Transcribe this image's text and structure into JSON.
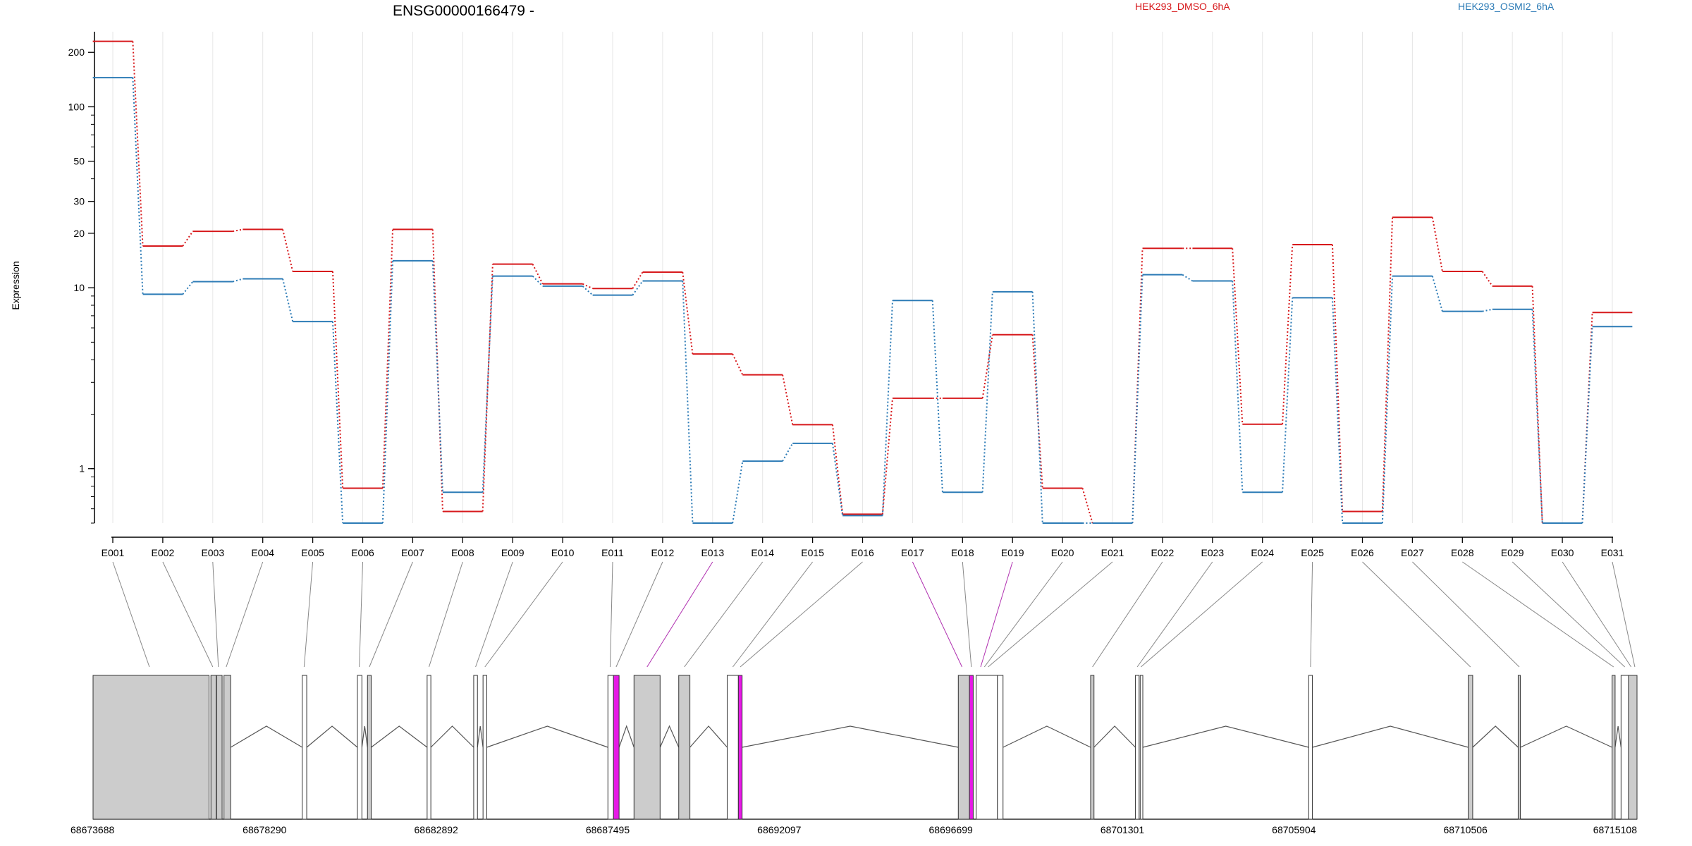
{
  "chart_data": {
    "type": "line",
    "title": "ENSG00000166479 -",
    "ylabel": "Expression",
    "xlabel": "",
    "yscale": "log",
    "ylim": [
      0.5,
      260
    ],
    "yticks": [
      1,
      10,
      20,
      30,
      50,
      100,
      200
    ],
    "grid": "vertical, light gray",
    "legend_placement": "top-right",
    "categories": [
      "E001",
      "E002",
      "E003",
      "E004",
      "E005",
      "E006",
      "E007",
      "E008",
      "E009",
      "E010",
      "E011",
      "E012",
      "E013",
      "E014",
      "E015",
      "E016",
      "E017",
      "E018",
      "E019",
      "E020",
      "E021",
      "E022",
      "E023",
      "E024",
      "E025",
      "E026",
      "E027",
      "E028",
      "E029",
      "E030",
      "E031"
    ],
    "series": [
      {
        "name": "HEK293_DMSO_6hA",
        "color": "#d7191c",
        "values": [
          230,
          17,
          20.5,
          21,
          12.3,
          0.78,
          21,
          0.58,
          13.5,
          10.5,
          9.9,
          12.2,
          4.3,
          3.3,
          1.75,
          0.56,
          2.45,
          2.45,
          5.5,
          0.78,
          0.5,
          16.5,
          16.5,
          1.76,
          17.3,
          0.58,
          24.5,
          12.3,
          10.2,
          0.5,
          7.3
        ]
      },
      {
        "name": "HEK293_OSMI2_6hA",
        "color": "#2c7bb6",
        "values": [
          145,
          9.2,
          10.8,
          11.2,
          6.5,
          0.5,
          14.1,
          0.74,
          11.6,
          10.2,
          9.1,
          10.9,
          0.5,
          1.1,
          1.38,
          0.55,
          8.5,
          0.74,
          9.5,
          0.5,
          0.5,
          11.8,
          10.9,
          0.74,
          8.8,
          0.5,
          11.6,
          7.4,
          7.6,
          0.5,
          6.1
        ]
      }
    ]
  },
  "genome": {
    "axis_labels": [
      "68673688",
      "68678290",
      "68682892",
      "68687495",
      "68692097",
      "68696699",
      "68701301",
      "68705904",
      "68710506",
      "68715108"
    ],
    "start": 68673688,
    "end": 68715108,
    "highlight_color": "#e619e6",
    "box_fill": "#cccccc",
    "exon_spans": [
      [
        68673688,
        68676800
      ],
      [
        68676850,
        68676990
      ],
      [
        68677000,
        68677150
      ],
      [
        68677200,
        68677380
      ],
      [
        68679300,
        68679420
      ],
      [
        68680780,
        68680900
      ],
      [
        68681050,
        68681150
      ],
      [
        68682650,
        68682750
      ],
      [
        68683900,
        68684000
      ],
      [
        68684150,
        68684250
      ],
      [
        68687500,
        68687650
      ],
      [
        68687650,
        68687800
      ],
      [
        68688200,
        68688900
      ],
      [
        68689400,
        68689700
      ],
      [
        68690700,
        68691000
      ],
      [
        68691000,
        68691100
      ],
      [
        68696900,
        68697200
      ],
      [
        68697200,
        68697300
      ],
      [
        68697380,
        68697950
      ],
      [
        68697950,
        68698100
      ],
      [
        68700450,
        68700540
      ],
      [
        68701650,
        68701750
      ],
      [
        68701780,
        68701850
      ],
      [
        68706300,
        68706400
      ],
      [
        68710580,
        68710700
      ],
      [
        68711920,
        68711980
      ],
      [
        68714440,
        68714520
      ],
      [
        68714680,
        68714880
      ],
      [
        68714880,
        68715108
      ]
    ],
    "exon_kinds": [
      "gray",
      "gray",
      "gray",
      "gray",
      "white",
      "white",
      "gray",
      "white",
      "white",
      "white",
      "white",
      "magenta",
      "gray",
      "gray",
      "white",
      "magenta",
      "gray",
      "magenta",
      "white",
      "white",
      "gray",
      "white",
      "white",
      "white",
      "gray",
      "gray",
      "gray",
      "white",
      "gray"
    ],
    "connector_ends": [
      68675200,
      68676900,
      68677050,
      68677260,
      68679350,
      68680830,
      68681100,
      68682700,
      68683950,
      68684200,
      68687560,
      68687720,
      68688550,
      68689550,
      68690850,
      68691050,
      68697000,
      68697250,
      68697500,
      68697600,
      68697700,
      68700500,
      68701700,
      68701800,
      68706350,
      68710640,
      68711950,
      68714480,
      68714780,
      68714950,
      68715050
    ],
    "connector_magenta": [
      false,
      false,
      false,
      false,
      false,
      false,
      false,
      false,
      false,
      false,
      false,
      false,
      true,
      false,
      false,
      false,
      true,
      false,
      true,
      false,
      false,
      false,
      false,
      false,
      false,
      false,
      false,
      false,
      false,
      false,
      false
    ]
  }
}
